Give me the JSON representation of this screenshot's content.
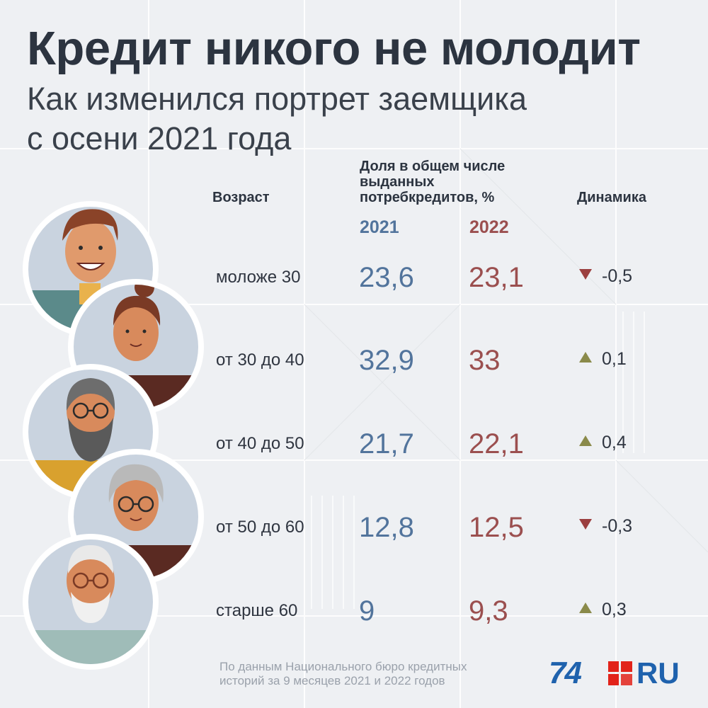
{
  "title": "Кредит никого не молодит",
  "subtitle_lines": [
    "Как изменился портрет заемщика",
    "с осени 2021 года"
  ],
  "chart_data": {
    "type": "table",
    "headers": {
      "age": "Возраст",
      "share_lines": [
        "Доля в общем числе",
        "выданных",
        "потребкредитов, %"
      ],
      "dynamics": "Динамика"
    },
    "categories": [
      "моложе 30",
      "от 30 до 40",
      "от 40 до 50",
      "от 50 до 60",
      "старше 60"
    ],
    "series": [
      {
        "name": "2021",
        "values": [
          23.6,
          32.9,
          21.7,
          12.8,
          9
        ],
        "labels": [
          "23,6",
          "32,9",
          "21,7",
          "12,8",
          "9"
        ],
        "color": "#52749c"
      },
      {
        "name": "2022",
        "values": [
          23.1,
          33,
          22.1,
          12.5,
          9.3
        ],
        "labels": [
          "23,1",
          "33",
          "22,1",
          "12,5",
          "9,3"
        ],
        "color": "#9b4f4f"
      }
    ],
    "dynamics": [
      {
        "direction": "down",
        "label": "-0,5"
      },
      {
        "direction": "up",
        "label": "0,1"
      },
      {
        "direction": "up",
        "label": "0,4"
      },
      {
        "direction": "down",
        "label": "-0,3"
      },
      {
        "direction": "up",
        "label": "0,3"
      }
    ]
  },
  "footer": {
    "source_lines": [
      "По данным Национального бюро кредитных",
      "историй за 9 месяцев 2021 и 2022 годов"
    ],
    "logo_number": "74",
    "logo_suffix": "RU"
  },
  "colors": {
    "background": "#eef0f3",
    "year_2021": "#52749c",
    "year_2022": "#9b4f4f",
    "down": "#9b3f3f",
    "up": "#8a8a4a",
    "brand": "#1f62ad",
    "brand_accent": "#e2231a"
  }
}
